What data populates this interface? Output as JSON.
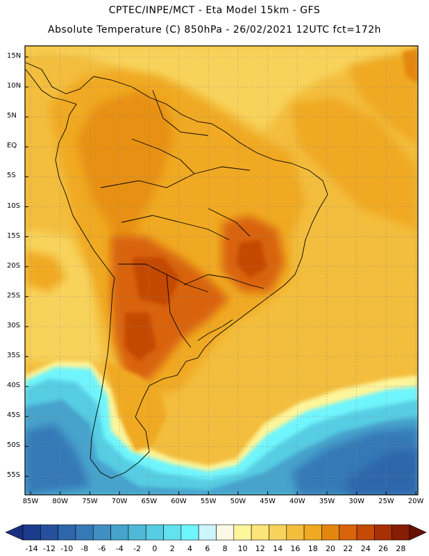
{
  "header": {
    "line1": "CPTEC/INPE/MCT -  Eta Model 15km - GFS",
    "line2": "Absolute Temperature (C) 850hPa - 26/02/2021 12UTC fct=172h"
  },
  "map": {
    "region": "South America",
    "variable": "Absolute Temperature (C) 850hPa",
    "lat_labels": [
      "15N",
      "10N",
      "5N",
      "EQ",
      "5S",
      "10S",
      "15S",
      "20S",
      "25S",
      "30S",
      "35S",
      "40S",
      "45S",
      "50S",
      "55S"
    ],
    "lon_labels": [
      "85W",
      "80W",
      "75W",
      "70W",
      "65W",
      "60W",
      "55W",
      "50W",
      "45W",
      "40W",
      "35W",
      "30W",
      "25W",
      "20W"
    ]
  },
  "colorbar": {
    "labels": [
      "-14",
      "-12",
      "-10",
      "-8",
      "-6",
      "-4",
      "-2",
      "0",
      "2",
      "4",
      "6",
      "8",
      "10",
      "12",
      "14",
      "16",
      "18",
      "20",
      "22",
      "24",
      "26",
      "28"
    ],
    "colors": [
      "#1d3b8c",
      "#26509c",
      "#2d66ab",
      "#3679b7",
      "#3f8fc1",
      "#46a3cc",
      "#4fb8d7",
      "#57cde3",
      "#62e2ef",
      "#6ff5fc",
      "#cdf5fc",
      "#fdf7e6",
      "#fdf59a",
      "#fbe57a",
      "#f8d35c",
      "#f3bd3d",
      "#f0a920",
      "#e4860e",
      "#d9640a",
      "#c44a06",
      "#a63004",
      "#871d04"
    ],
    "end_low": "#1a2f7e",
    "end_high": "#6a1002"
  }
}
